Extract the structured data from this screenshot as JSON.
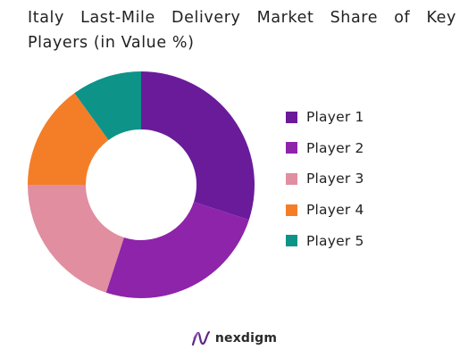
{
  "chart_data": {
    "type": "pie",
    "title": "Italy Last-Mile Delivery Market Share of Key Players (in Value %)",
    "categories": [
      "Player 1",
      "Player 2",
      "Player 3",
      "Player 4",
      "Player 5"
    ],
    "values": [
      30,
      25,
      20,
      15,
      10
    ],
    "colors": [
      "#6a1b9a",
      "#8e24aa",
      "#e08ea0",
      "#f47e28",
      "#0e9388"
    ],
    "donut": true,
    "legend_position": "right",
    "start_angle_deg": 0,
    "direction": "clockwise"
  },
  "brand": {
    "name": "nexdigm",
    "logo_icon": "nexdigm-logo-icon"
  }
}
